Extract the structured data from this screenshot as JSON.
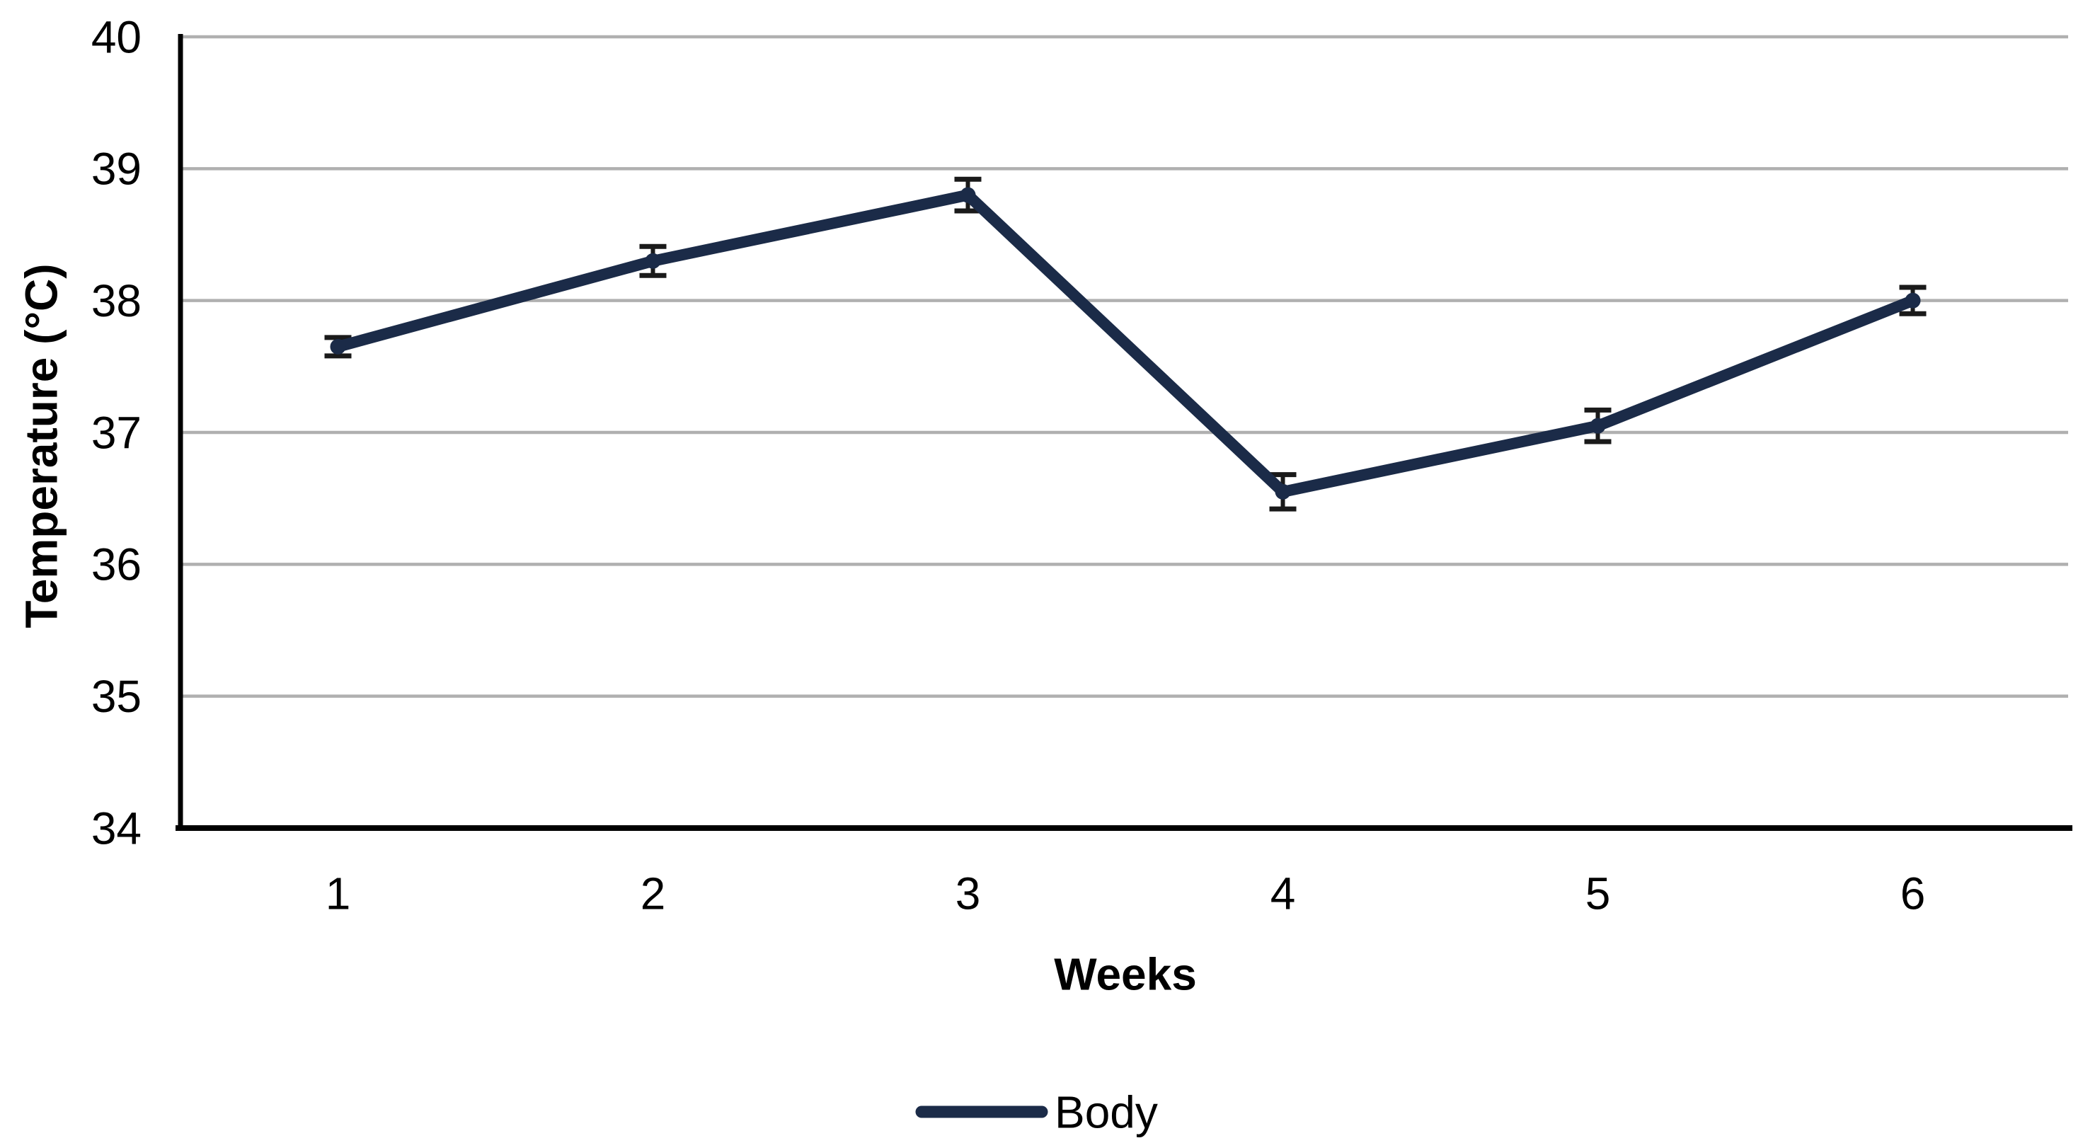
{
  "figure": {
    "background": "#ffffff"
  },
  "chart_data": {
    "type": "line",
    "title": "",
    "xlabel": "Weeks",
    "ylabel": "Temperature (°C)",
    "categories": [
      "1",
      "2",
      "3",
      "4",
      "5",
      "6"
    ],
    "series": [
      {
        "name": "Body",
        "color": "#1b2b48",
        "values": [
          37.65,
          38.3,
          38.8,
          36.55,
          37.05,
          38.0
        ],
        "error_bars_plus_minus": [
          0.07,
          0.11,
          0.12,
          0.13,
          0.12,
          0.1
        ]
      }
    ],
    "ylim": [
      34,
      40
    ],
    "yticks": [
      40,
      39,
      38,
      37,
      36,
      35,
      34
    ],
    "grid": true,
    "legend_position": "bottom-center",
    "styles": {
      "gridline_color": "#b0b0b0",
      "axis_color": "#000000",
      "error_bar_color": "#1a1a1a",
      "text_color": "#000000"
    }
  }
}
